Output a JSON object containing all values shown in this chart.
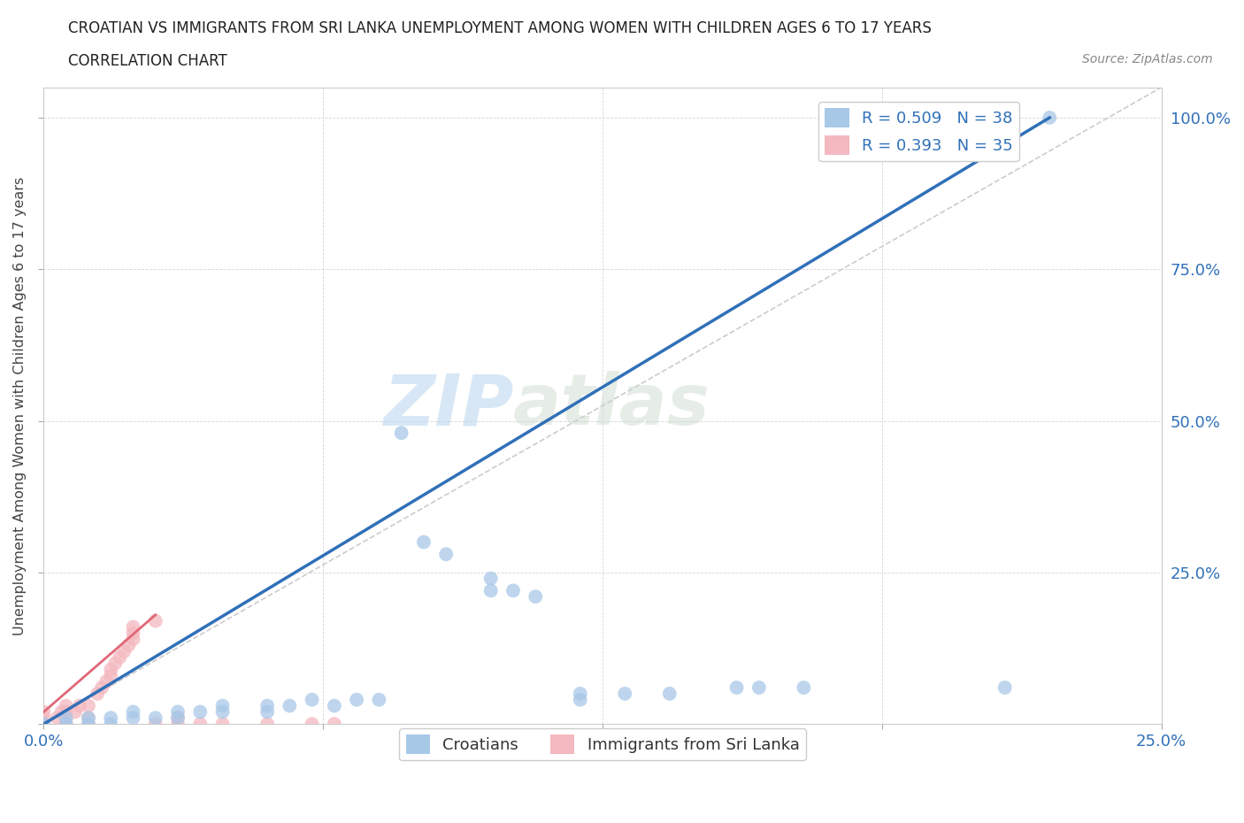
{
  "title": "CROATIAN VS IMMIGRANTS FROM SRI LANKA UNEMPLOYMENT AMONG WOMEN WITH CHILDREN AGES 6 TO 17 YEARS",
  "subtitle": "CORRELATION CHART",
  "source": "Source: ZipAtlas.com",
  "ylabel": "Unemployment Among Women with Children Ages 6 to 17 years",
  "xlim": [
    0.0,
    0.25
  ],
  "ylim": [
    0.0,
    1.05
  ],
  "xticks": [
    0.0,
    0.0625,
    0.125,
    0.1875,
    0.25
  ],
  "xticklabels": [
    "0.0%",
    "",
    "",
    "",
    "25.0%"
  ],
  "yticks": [
    0.0,
    0.25,
    0.5,
    0.75,
    1.0
  ],
  "yticklabels": [
    "",
    "25.0%",
    "50.0%",
    "75.0%",
    "100.0%"
  ],
  "legend_r1": "R = 0.509",
  "legend_n1": "N = 38",
  "legend_r2": "R = 0.393",
  "legend_n2": "N = 35",
  "blue_color": "#A8C8E8",
  "pink_color": "#F4B8C0",
  "blue_line_color": "#3070B8",
  "pink_line_color": "#E06878",
  "diagonal_color": "#C8C8C8",
  "watermark_zip": "ZIP",
  "watermark_atlas": "atlas",
  "blue_dots": [
    [
      0.0,
      0.0
    ],
    [
      0.005,
      0.0
    ],
    [
      0.005,
      0.01
    ],
    [
      0.01,
      0.0
    ],
    [
      0.01,
      0.01
    ],
    [
      0.015,
      0.0
    ],
    [
      0.015,
      0.01
    ],
    [
      0.02,
      0.01
    ],
    [
      0.02,
      0.02
    ],
    [
      0.025,
      0.01
    ],
    [
      0.03,
      0.01
    ],
    [
      0.03,
      0.02
    ],
    [
      0.035,
      0.02
    ],
    [
      0.04,
      0.02
    ],
    [
      0.04,
      0.03
    ],
    [
      0.05,
      0.02
    ],
    [
      0.05,
      0.03
    ],
    [
      0.055,
      0.03
    ],
    [
      0.06,
      0.04
    ],
    [
      0.065,
      0.03
    ],
    [
      0.07,
      0.04
    ],
    [
      0.075,
      0.04
    ],
    [
      0.08,
      0.48
    ],
    [
      0.085,
      0.3
    ],
    [
      0.09,
      0.28
    ],
    [
      0.1,
      0.24
    ],
    [
      0.1,
      0.22
    ],
    [
      0.105,
      0.22
    ],
    [
      0.11,
      0.21
    ],
    [
      0.12,
      0.05
    ],
    [
      0.12,
      0.04
    ],
    [
      0.13,
      0.05
    ],
    [
      0.14,
      0.05
    ],
    [
      0.155,
      0.06
    ],
    [
      0.16,
      0.06
    ],
    [
      0.17,
      0.06
    ],
    [
      0.225,
      1.0
    ],
    [
      0.215,
      0.06
    ]
  ],
  "pink_dots": [
    [
      0.0,
      0.0
    ],
    [
      0.0,
      0.01
    ],
    [
      0.0,
      0.02
    ],
    [
      0.003,
      0.01
    ],
    [
      0.004,
      0.02
    ],
    [
      0.005,
      0.0
    ],
    [
      0.005,
      0.01
    ],
    [
      0.005,
      0.02
    ],
    [
      0.005,
      0.03
    ],
    [
      0.007,
      0.02
    ],
    [
      0.008,
      0.03
    ],
    [
      0.01,
      0.0
    ],
    [
      0.01,
      0.01
    ],
    [
      0.01,
      0.03
    ],
    [
      0.012,
      0.05
    ],
    [
      0.013,
      0.06
    ],
    [
      0.014,
      0.07
    ],
    [
      0.015,
      0.08
    ],
    [
      0.015,
      0.09
    ],
    [
      0.016,
      0.1
    ],
    [
      0.017,
      0.11
    ],
    [
      0.018,
      0.12
    ],
    [
      0.019,
      0.13
    ],
    [
      0.02,
      0.14
    ],
    [
      0.02,
      0.15
    ],
    [
      0.02,
      0.16
    ],
    [
      0.025,
      0.17
    ],
    [
      0.025,
      0.0
    ],
    [
      0.03,
      0.0
    ],
    [
      0.03,
      0.01
    ],
    [
      0.035,
      0.0
    ],
    [
      0.04,
      0.0
    ],
    [
      0.05,
      0.0
    ],
    [
      0.06,
      0.0
    ],
    [
      0.065,
      0.0
    ]
  ],
  "blue_line": [
    [
      0.0,
      0.0
    ],
    [
      0.225,
      1.0
    ]
  ],
  "pink_line": [
    [
      0.0,
      0.02
    ],
    [
      0.025,
      0.18
    ]
  ]
}
